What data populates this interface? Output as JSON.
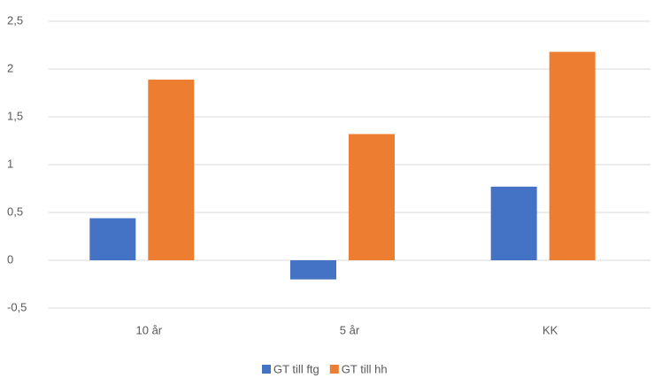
{
  "chart_data": {
    "type": "bar",
    "categories": [
      "10 år",
      "5 år",
      "KK"
    ],
    "series": [
      {
        "name": "GT till ftg",
        "color": "#4472c4",
        "values": [
          0.44,
          -0.2,
          0.77
        ]
      },
      {
        "name": "GT till hh",
        "color": "#ed7d31",
        "values": [
          1.89,
          1.32,
          2.18
        ]
      }
    ],
    "ylim": [
      -0.5,
      2.5
    ],
    "yticks": [
      {
        "value": -0.5,
        "label": "-0,5"
      },
      0,
      {
        "value": 0.5,
        "label": "0,5"
      },
      1,
      {
        "value": 1.5,
        "label": "1,5"
      },
      2,
      {
        "value": 2.5,
        "label": "2,5"
      }
    ],
    "grid": true,
    "legend": "bottom"
  }
}
